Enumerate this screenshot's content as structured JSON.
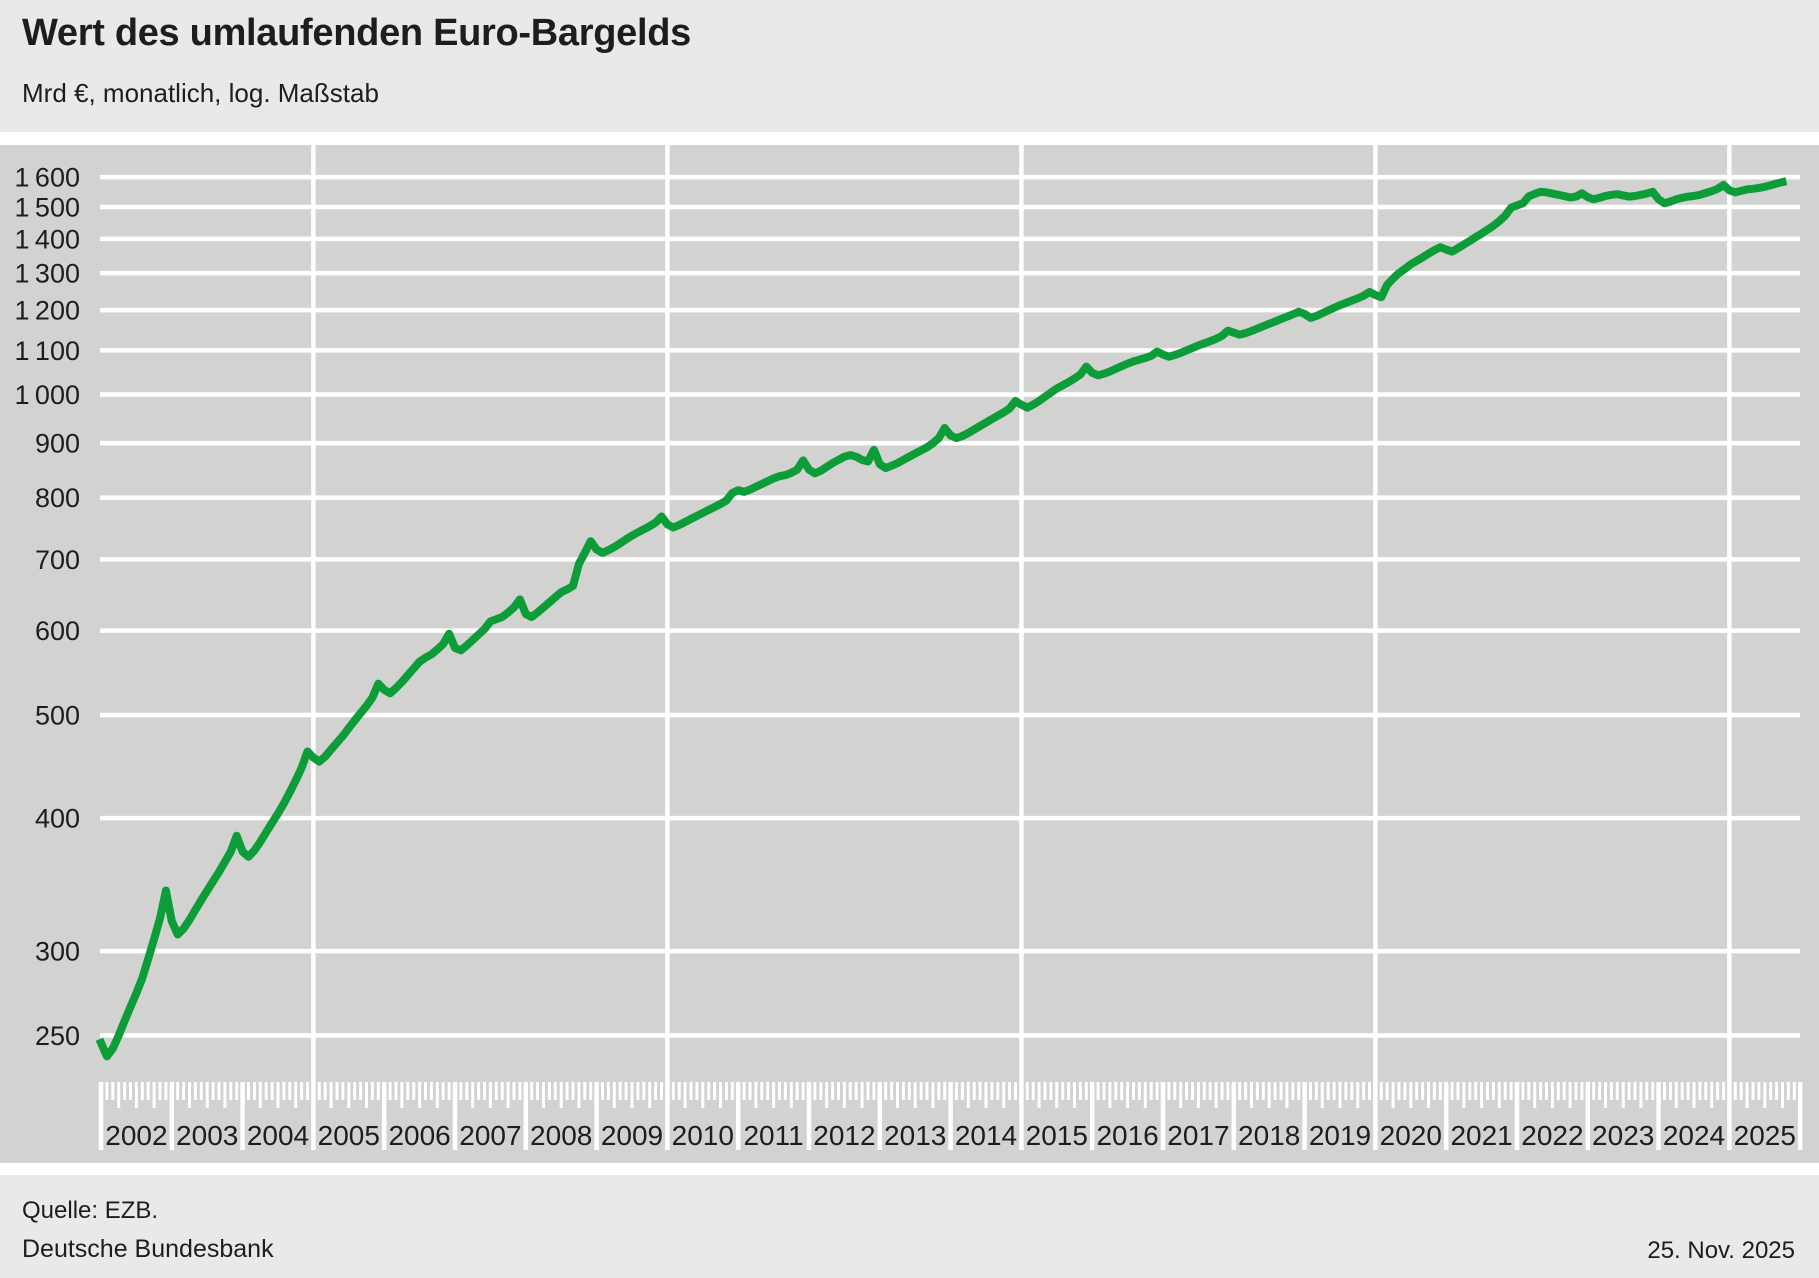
{
  "header": {
    "title": "Wert des umlaufenden Euro-Bargelds",
    "subtitle": "Mrd €, monatlich, log. Maßstab"
  },
  "footer": {
    "source": "Quelle: EZB.",
    "publisher": "Deutsche Bundesbank",
    "date": "25. Nov. 2025"
  },
  "colors": {
    "header_bg": "#e9e9e8",
    "plot_bg": "#d2d2d1",
    "gridline": "#ffffff",
    "line_green": "#0c9c38",
    "text": "#1d1d1b"
  },
  "chart_data": {
    "type": "line",
    "title": "Wert des umlaufenden Euro-Bargelds",
    "ylabel": "Mrd €",
    "frequency": "monatlich",
    "scale": "log",
    "grid": true,
    "legend_position": "none",
    "y_axis": {
      "ticks": [
        {
          "value": 250,
          "label": "250"
        },
        {
          "value": 300,
          "label": "300"
        },
        {
          "value": 400,
          "label": "400"
        },
        {
          "value": 500,
          "label": "500"
        },
        {
          "value": 600,
          "label": "600"
        },
        {
          "value": 700,
          "label": "700"
        },
        {
          "value": 800,
          "label": "800"
        },
        {
          "value": 900,
          "label": "900"
        },
        {
          "value": 1000,
          "label": "1 000"
        },
        {
          "value": 1100,
          "label": "1 100"
        },
        {
          "value": 1200,
          "label": "1 200"
        },
        {
          "value": 1300,
          "label": "1 300"
        },
        {
          "value": 1400,
          "label": "1 400"
        },
        {
          "value": 1500,
          "label": "1 500"
        },
        {
          "value": 1600,
          "label": "1 600"
        }
      ],
      "ylim": [
        232,
        1700
      ]
    },
    "x_axis": {
      "year_labels": [
        "2002",
        "2003",
        "2004",
        "2005",
        "2006",
        "2007",
        "2008",
        "2009",
        "2010",
        "2011",
        "2012",
        "2013",
        "2014",
        "2015",
        "2016",
        "2017",
        "2018",
        "2019",
        "2020",
        "2021",
        "2022",
        "2023",
        "2024",
        "2025"
      ],
      "gridline_years": [
        2005,
        2010,
        2015,
        2020,
        2025
      ],
      "tick_frequency": "monthly"
    },
    "series": [
      {
        "name": "Wert des umlaufenden Euro-Bargelds",
        "unit": "Mrd €",
        "start": "2002-01",
        "end": "2025-10",
        "frequency": "monthly",
        "values": [
          246,
          239,
          243,
          250,
          258,
          266,
          274,
          283,
          295,
          308,
          322,
          342,
          320,
          311,
          315,
          321,
          328,
          335,
          342,
          349,
          356,
          364,
          372,
          385,
          372,
          368,
          373,
          380,
          388,
          396,
          404,
          413,
          423,
          434,
          446,
          462,
          456,
          452,
          457,
          464,
          471,
          478,
          486,
          494,
          502,
          510,
          519,
          535,
          528,
          524,
          530,
          537,
          545,
          553,
          561,
          566,
          570,
          576,
          583,
          596,
          578,
          575,
          581,
          588,
          595,
          602,
          612,
          615,
          618,
          624,
          631,
          642,
          622,
          618,
          624,
          631,
          638,
          645,
          652,
          656,
          661,
          693,
          710,
          728,
          715,
          710,
          714,
          719,
          725,
          731,
          737,
          742,
          747,
          752,
          758,
          768,
          755,
          750,
          754,
          759,
          764,
          769,
          774,
          779,
          784,
          789,
          795,
          808,
          813,
          810,
          814,
          819,
          824,
          829,
          834,
          838,
          840,
          844,
          850,
          867,
          850,
          843,
          848,
          855,
          862,
          868,
          874,
          877,
          874,
          868,
          865,
          887,
          860,
          853,
          857,
          862,
          868,
          874,
          880,
          886,
          892,
          900,
          910,
          930,
          915,
          910,
          914,
          920,
          927,
          934,
          941,
          948,
          955,
          962,
          970,
          986,
          978,
          972,
          978,
          986,
          995,
          1004,
          1013,
          1020,
          1027,
          1035,
          1044,
          1062,
          1048,
          1042,
          1046,
          1051,
          1057,
          1063,
          1069,
          1074,
          1078,
          1082,
          1087,
          1097,
          1090,
          1085,
          1089,
          1094,
          1100,
          1106,
          1112,
          1117,
          1122,
          1128,
          1135,
          1148,
          1143,
          1138,
          1142,
          1147,
          1153,
          1159,
          1165,
          1171,
          1177,
          1183,
          1189,
          1196,
          1190,
          1180,
          1185,
          1192,
          1199,
          1206,
          1213,
          1219,
          1225,
          1231,
          1238,
          1248,
          1240,
          1234,
          1268,
          1285,
          1300,
          1312,
          1325,
          1335,
          1345,
          1356,
          1366,
          1375,
          1368,
          1362,
          1372,
          1383,
          1394,
          1405,
          1416,
          1428,
          1440,
          1455,
          1472,
          1498,
          1505,
          1512,
          1535,
          1543,
          1550,
          1548,
          1544,
          1540,
          1536,
          1531,
          1534,
          1545,
          1532,
          1525,
          1530,
          1536,
          1540,
          1542,
          1538,
          1534,
          1536,
          1540,
          1544,
          1550,
          1525,
          1512,
          1518,
          1525,
          1530,
          1534,
          1536,
          1540,
          1546,
          1552,
          1560,
          1573,
          1555,
          1548,
          1553,
          1558,
          1560,
          1563,
          1567,
          1572,
          1578,
          1583
        ]
      }
    ]
  }
}
